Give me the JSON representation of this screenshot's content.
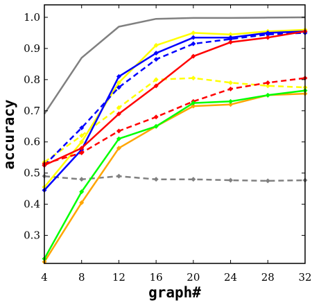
{
  "chart_data": {
    "type": "line",
    "title": "",
    "xlabel": "graph#",
    "ylabel": "accuracy",
    "x": [
      4,
      8,
      12,
      16,
      20,
      24,
      28,
      32
    ],
    "xlim": [
      4,
      32
    ],
    "ylim": [
      0.21,
      1.04
    ],
    "xticks": [
      4,
      8,
      12,
      16,
      20,
      24,
      28,
      32
    ],
    "yticks": [
      0.3,
      0.4,
      0.5,
      0.6,
      0.7,
      0.8,
      0.9,
      1.0
    ],
    "ytick_labels": [
      "0.3",
      "0.4",
      "0.5",
      "0.6",
      "0.7",
      "0.8",
      "0.9",
      "1.0"
    ],
    "grid": false,
    "legend": "none",
    "series": [
      {
        "color": "#808080",
        "dash": "solid",
        "marker": false,
        "values": [
          0.69,
          0.87,
          0.97,
          0.995,
          0.998,
          0.998,
          0.999,
          1.0
        ]
      },
      {
        "color": "#808080",
        "dash": "dashed",
        "marker": true,
        "values": [
          0.49,
          0.48,
          0.49,
          0.48,
          0.48,
          0.477,
          0.475,
          0.477
        ]
      },
      {
        "color": "#ffff00",
        "dash": "solid",
        "marker": true,
        "values": [
          0.455,
          0.6,
          0.79,
          0.91,
          0.95,
          0.945,
          0.955,
          0.96
        ]
      },
      {
        "color": "#ffff00",
        "dash": "dashed",
        "marker": true,
        "values": [
          0.535,
          0.62,
          0.71,
          0.8,
          0.805,
          0.79,
          0.78,
          0.775
        ]
      },
      {
        "color": "#0000ff",
        "dash": "solid",
        "marker": true,
        "values": [
          0.445,
          0.575,
          0.81,
          0.885,
          0.935,
          0.935,
          0.95,
          0.955
        ]
      },
      {
        "color": "#0000ff",
        "dash": "dashed",
        "marker": true,
        "values": [
          0.525,
          0.645,
          0.775,
          0.865,
          0.915,
          0.93,
          0.945,
          0.95
        ]
      },
      {
        "color": "#ff0000",
        "dash": "solid",
        "marker": true,
        "values": [
          0.525,
          0.58,
          0.69,
          0.78,
          0.875,
          0.92,
          0.935,
          0.955
        ]
      },
      {
        "color": "#ff0000",
        "dash": "dashed",
        "marker": true,
        "values": [
          0.53,
          0.565,
          0.635,
          0.68,
          0.73,
          0.77,
          0.79,
          0.805
        ]
      },
      {
        "color": "#ffa500",
        "dash": "solid",
        "marker": true,
        "values": [
          0.215,
          0.405,
          0.58,
          0.65,
          0.715,
          0.72,
          0.75,
          0.755
        ]
      },
      {
        "color": "#00ff00",
        "dash": "solid",
        "marker": true,
        "values": [
          0.225,
          0.44,
          0.61,
          0.65,
          0.725,
          0.73,
          0.75,
          0.765
        ]
      }
    ]
  }
}
